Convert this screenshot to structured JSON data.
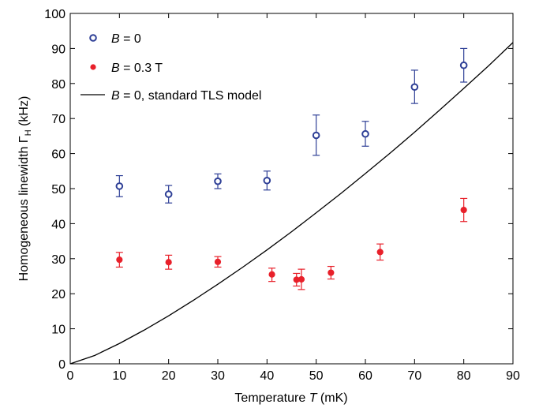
{
  "chart_data": {
    "type": "scatter",
    "xlabel": "Temperature T (mK)",
    "xlabel_parts": {
      "pre": "Temperature ",
      "var": "T",
      "post": " (mK)"
    },
    "ylabel": "Homogeneous linewidth Γ_H (kHz)",
    "ylabel_parts": {
      "pre": "Homogeneous linewidth Γ",
      "sub": "H",
      "post": " (kHz)"
    },
    "xlim": [
      0,
      90
    ],
    "ylim": [
      0,
      100
    ],
    "x_ticks": [
      0,
      10,
      20,
      30,
      40,
      50,
      60,
      70,
      80,
      90
    ],
    "y_ticks": [
      0,
      10,
      20,
      30,
      40,
      50,
      60,
      70,
      80,
      90,
      100
    ],
    "grid": false,
    "legend_position": "top-left",
    "series": [
      {
        "name": "B = 0",
        "label_parts": {
          "var": "B",
          "rest": " = 0"
        },
        "marker": "open-circle",
        "color": "#2e3f96",
        "points": [
          {
            "x": 10,
            "y": 50.7,
            "err_lo": 47.7,
            "err_hi": 53.7
          },
          {
            "x": 20,
            "y": 48.4,
            "err_lo": 45.9,
            "err_hi": 50.9
          },
          {
            "x": 30,
            "y": 52.1,
            "err_lo": 50.0,
            "err_hi": 54.2
          },
          {
            "x": 40,
            "y": 52.3,
            "err_lo": 49.6,
            "err_hi": 55.0
          },
          {
            "x": 50,
            "y": 65.2,
            "err_lo": 59.5,
            "err_hi": 71.0
          },
          {
            "x": 60,
            "y": 65.6,
            "err_lo": 62.1,
            "err_hi": 69.2
          },
          {
            "x": 70,
            "y": 79.0,
            "err_lo": 74.3,
            "err_hi": 83.8
          },
          {
            "x": 80,
            "y": 85.2,
            "err_lo": 80.4,
            "err_hi": 90.0
          }
        ]
      },
      {
        "name": "B = 0.3 T",
        "label_parts": {
          "var": "B",
          "rest": " = 0.3 T"
        },
        "marker": "filled-circle",
        "color": "#e8202a",
        "points": [
          {
            "x": 10,
            "y": 29.7,
            "err_lo": 27.6,
            "err_hi": 31.8
          },
          {
            "x": 20,
            "y": 29.0,
            "err_lo": 27.0,
            "err_hi": 31.0
          },
          {
            "x": 30,
            "y": 29.1,
            "err_lo": 27.6,
            "err_hi": 30.6
          },
          {
            "x": 41,
            "y": 25.5,
            "err_lo": 23.5,
            "err_hi": 27.3
          },
          {
            "x": 46,
            "y": 24.0,
            "err_lo": 22.2,
            "err_hi": 25.8
          },
          {
            "x": 47,
            "y": 24.1,
            "err_lo": 21.2,
            "err_hi": 27.0
          },
          {
            "x": 53,
            "y": 26.0,
            "err_lo": 24.2,
            "err_hi": 27.8
          },
          {
            "x": 63,
            "y": 31.9,
            "err_lo": 29.6,
            "err_hi": 34.2
          },
          {
            "x": 80,
            "y": 43.9,
            "err_lo": 40.6,
            "err_hi": 47.2
          }
        ]
      },
      {
        "name": "B = 0, standard TLS model",
        "label_parts": {
          "var": "B",
          "rest": " = 0, standard TLS model"
        },
        "marker": "line",
        "color": "#000000",
        "points": [
          {
            "x": 0,
            "y": 0
          },
          {
            "x": 5,
            "y": 2.4
          },
          {
            "x": 10,
            "y": 5.8
          },
          {
            "x": 15,
            "y": 9.6
          },
          {
            "x": 20,
            "y": 13.7
          },
          {
            "x": 25,
            "y": 18.1
          },
          {
            "x": 30,
            "y": 22.7
          },
          {
            "x": 35,
            "y": 27.5
          },
          {
            "x": 40,
            "y": 32.5
          },
          {
            "x": 45,
            "y": 37.7
          },
          {
            "x": 50,
            "y": 43.1
          },
          {
            "x": 55,
            "y": 48.6
          },
          {
            "x": 60,
            "y": 54.3
          },
          {
            "x": 65,
            "y": 60.1
          },
          {
            "x": 70,
            "y": 66.1
          },
          {
            "x": 75,
            "y": 72.3
          },
          {
            "x": 80,
            "y": 78.6
          },
          {
            "x": 85,
            "y": 85.0
          },
          {
            "x": 90,
            "y": 91.7
          }
        ]
      }
    ]
  }
}
